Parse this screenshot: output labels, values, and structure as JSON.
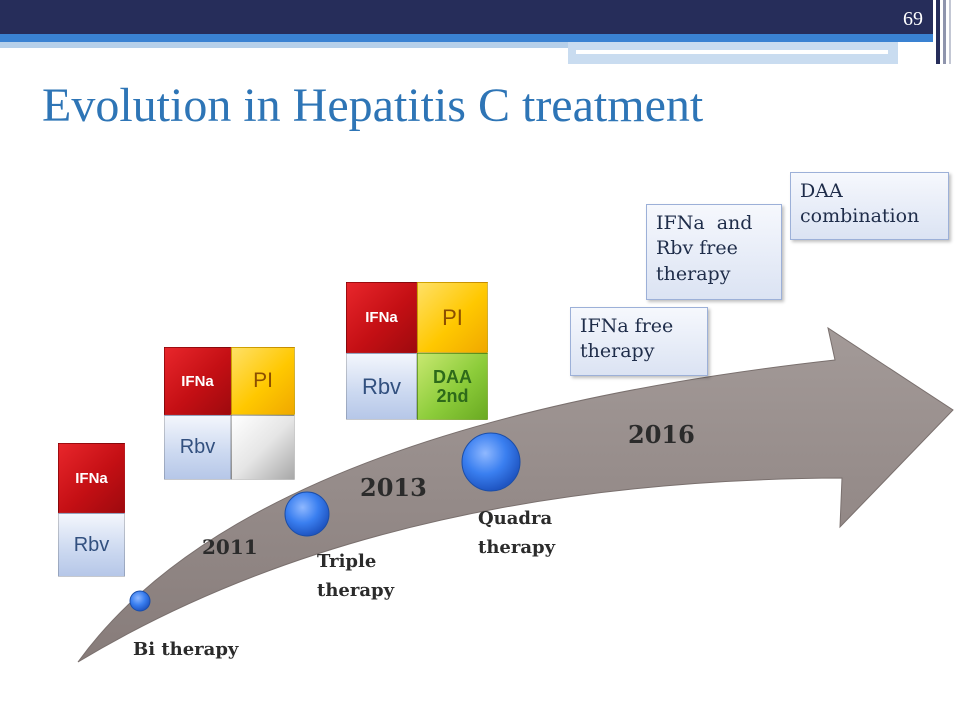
{
  "slide": {
    "page_number": "69",
    "title": "Evolution in Hepatitis C treatment"
  },
  "timeline": {
    "years": [
      "2011",
      "2013",
      "2016"
    ],
    "therapies": [
      {
        "line1": "Bi therapy"
      },
      {
        "line1": "Triple",
        "line2": "therapy"
      },
      {
        "line1": "Quadra",
        "line2": "therapy"
      }
    ],
    "callouts": [
      {
        "line1": "IFNa free",
        "line2": "therapy"
      },
      {
        "line1": "IFNa  and",
        "line2": "Rbv free",
        "line3": "therapy"
      },
      {
        "line1": "DAA",
        "line2": "combination"
      }
    ]
  },
  "regimens": {
    "bi": {
      "ifn": "IFNa",
      "rbv": "Rbv"
    },
    "triple": {
      "ifn": "IFNa",
      "pi": "PI",
      "rbv": "Rbv"
    },
    "quadra": {
      "ifn": "IFNa",
      "pi": "PI",
      "rbv": "Rbv",
      "daa": "DAA 2nd"
    }
  },
  "colors": {
    "title": "#2e75b6",
    "header_bar": "#262d5a",
    "accent_bar": "#2e75b6",
    "arrow": "#938987",
    "milestone": "#3a7ff0"
  }
}
